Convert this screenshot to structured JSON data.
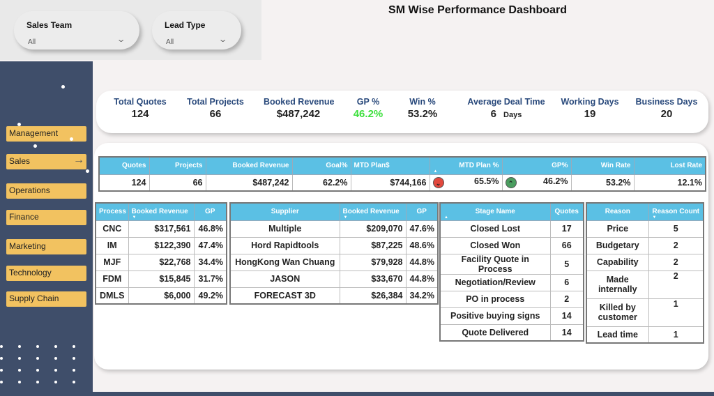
{
  "filters": {
    "sales_team": {
      "label": "Sales Team",
      "value": "All"
    },
    "lead_type": {
      "label": "Lead Type",
      "value": "All"
    }
  },
  "title": "SM Wise Performance Dashboard",
  "nav": [
    "Management",
    "Sales",
    "Operations",
    "Finance",
    "Marketing",
    "Technology",
    "Supply Chain"
  ],
  "kpis": [
    {
      "label": "Total Quotes",
      "value": "124"
    },
    {
      "label": "Total Projects",
      "value": "66"
    },
    {
      "label": "Booked Revenue",
      "value": "$487,242"
    },
    {
      "label": "GP %",
      "value": "46.2%",
      "color": "#3ee03e"
    },
    {
      "label": "Win %",
      "value": "53.2%"
    },
    {
      "label": "Average Deal Time",
      "value": "6",
      "unit": "Days"
    },
    {
      "label": "Working Days",
      "value": "19"
    },
    {
      "label": "Business Days",
      "value": "20"
    }
  ],
  "summary": {
    "headers": [
      "Quotes",
      "Projects",
      "Booked Revenue",
      "Goal%",
      "MTD Plan$",
      "MTD Plan %",
      "GP%",
      "Win Rate",
      "Lost Rate"
    ],
    "row": [
      "124",
      "66",
      "$487,242",
      "62.2%",
      "$744,166",
      "65.5%",
      "46.2%",
      "53.2%",
      "12.1%"
    ],
    "indicators": {
      "mtd_plan_pct": "down-red",
      "gp": "up-green"
    }
  },
  "process": {
    "headers": [
      "Process",
      "Booked Revenue",
      "GP"
    ],
    "rows": [
      [
        "CNC",
        "$317,561",
        "46.8%"
      ],
      [
        "IM",
        "$122,390",
        "47.4%"
      ],
      [
        "MJF",
        "$22,768",
        "34.4%"
      ],
      [
        "FDM",
        "$15,845",
        "31.7%"
      ],
      [
        "DMLS",
        "$6,000",
        "49.2%"
      ]
    ]
  },
  "supplier": {
    "headers": [
      "Supplier",
      "Booked Revenue",
      "GP"
    ],
    "rows": [
      [
        "Multiple",
        "$209,070",
        "47.6%"
      ],
      [
        "Hord Rapidtools",
        "$87,225",
        "48.6%"
      ],
      [
        "HongKong Wan Chuang",
        "$79,928",
        "44.8%"
      ],
      [
        "JASON",
        "$33,670",
        "44.8%"
      ],
      [
        "FORECAST 3D",
        "$26,384",
        "34.2%"
      ]
    ]
  },
  "stage": {
    "headers": [
      "Stage Name",
      "Quotes"
    ],
    "rows": [
      [
        "Closed Lost",
        "17"
      ],
      [
        "Closed Won",
        "66"
      ],
      [
        "Facility Quote in Process",
        "5"
      ],
      [
        "Negotiation/Review",
        "6"
      ],
      [
        "PO in process",
        "2"
      ],
      [
        "Positive buying signs",
        "14"
      ],
      [
        "Quote Delivered",
        "14"
      ]
    ]
  },
  "reason": {
    "headers": [
      "Reason",
      "Reason Count"
    ],
    "rows": [
      [
        "Price",
        "5"
      ],
      [
        "Budgetary",
        "2"
      ],
      [
        "Capability",
        "2"
      ],
      [
        "Made internally",
        "2"
      ],
      [
        "Killed by customer",
        "1"
      ],
      [
        "Lead time",
        "1"
      ]
    ]
  }
}
